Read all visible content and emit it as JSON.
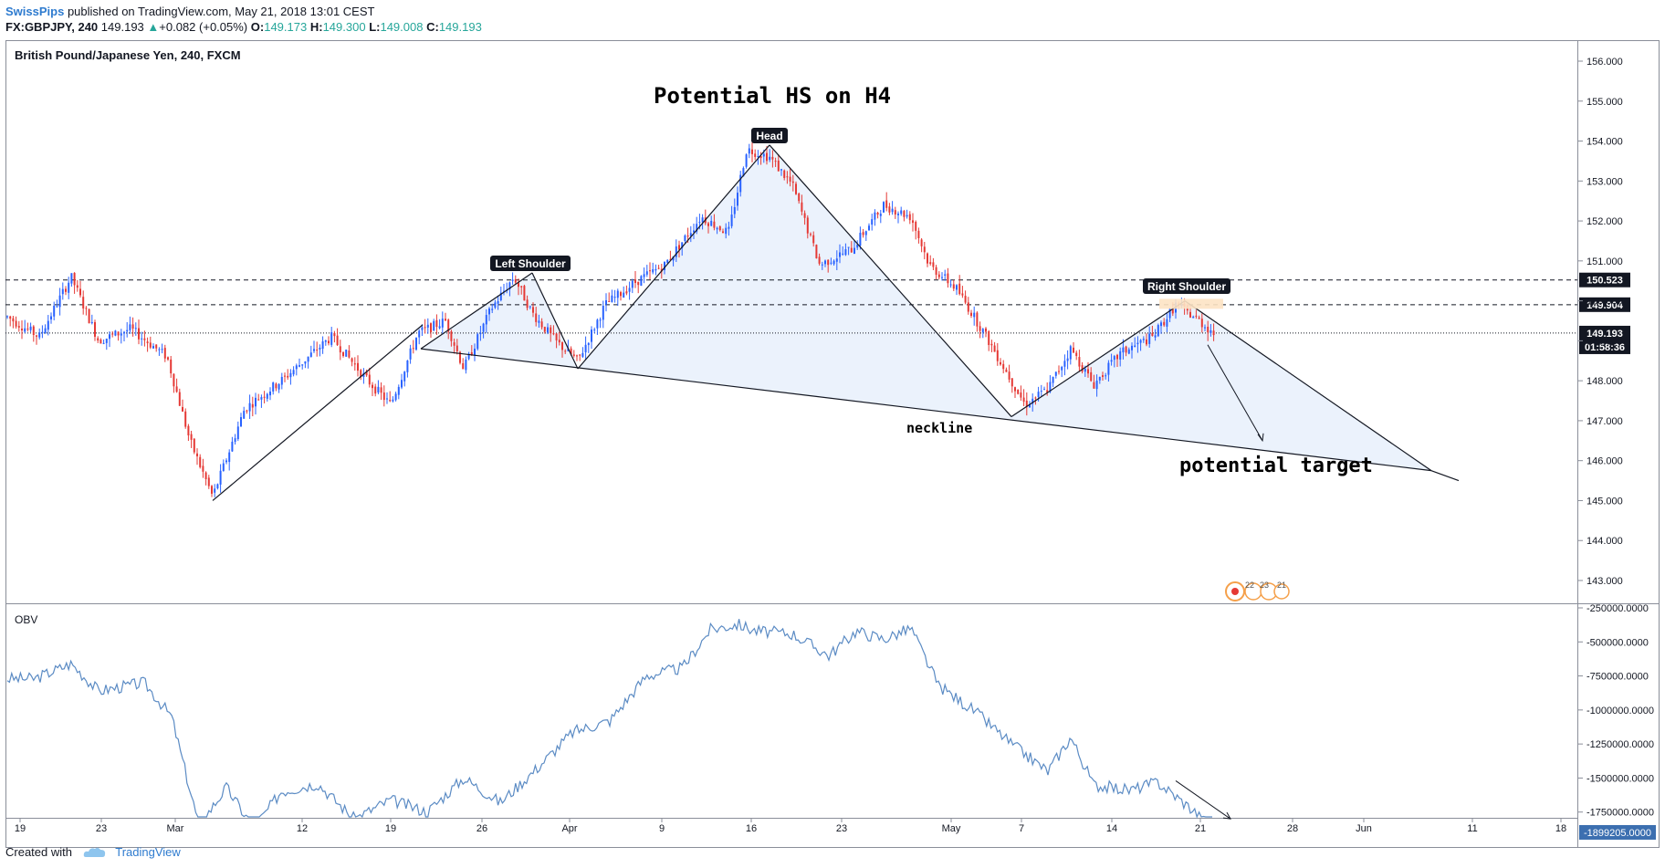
{
  "header": {
    "publisher": "SwissPips",
    "published_text": "published on TradingView.com, May 21, 2018 13:01 CEST",
    "symbol_interval": "FX:GBPJPY, 240",
    "last_price": "149.193",
    "change_arrow": "▲",
    "change": "+0.082 (+0.05%)",
    "o_label": "O:",
    "o_value": "149.173",
    "h_label": "H:",
    "h_value": "149.300",
    "l_label": "L:",
    "l_value": "149.008",
    "c_label": "C:",
    "c_value": "149.193"
  },
  "footer": {
    "created_with": "Created with",
    "brand": "TradingView"
  },
  "colors": {
    "up_candle": "#2962ff",
    "down_candle": "#e53935",
    "obv_line": "#5b8bc4",
    "brand": "#2e7bcf",
    "pattern_fill": "#e8f0fb",
    "shoulder_box": "#fde3c4"
  },
  "chart_data": [
    {
      "type": "candlestick",
      "title": "British Pound/Japanese Yen, 240, FXCM",
      "annotation_title": "Potential HS on H4",
      "y_ticks": [
        "156.000",
        "155.000",
        "154.000",
        "153.000",
        "152.000",
        "151.000",
        "150.000",
        "149.000",
        "148.000",
        "147.000",
        "146.000",
        "145.000",
        "144.000",
        "143.000"
      ],
      "ylim": [
        142.4,
        156.5
      ],
      "x_ticks": [
        "19",
        "23",
        "Mar",
        "12",
        "19",
        "26",
        "Apr",
        "9",
        "16",
        "23",
        "May",
        "7",
        "14",
        "21",
        "28",
        "Jun",
        "11",
        "18"
      ],
      "price_labels": [
        {
          "value": "150.523",
          "price": 150.523,
          "style": "dashed"
        },
        {
          "value": "149.904",
          "price": 149.904,
          "style": "dashed"
        },
        {
          "value": "149.193",
          "price": 149.193,
          "style": "dotted"
        },
        {
          "value": "01:58:36",
          "price": 148.85,
          "style": "countdown"
        }
      ],
      "labels": {
        "left_shoulder": "Left Shoulder",
        "head": "Head",
        "right_shoulder": "Right Shoulder",
        "neckline": "neckline",
        "potential_target": "potential target"
      },
      "events_badge": [
        "22",
        "23",
        "21"
      ],
      "price_path": [
        [
          0,
          149.6
        ],
        [
          35,
          149.1
        ],
        [
          70,
          150.6
        ],
        [
          100,
          149.0
        ],
        [
          135,
          149.3
        ],
        [
          175,
          148.6
        ],
        [
          200,
          146.5
        ],
        [
          225,
          145.1
        ],
        [
          260,
          147.3
        ],
        [
          300,
          148.0
        ],
        [
          355,
          149.1
        ],
        [
          395,
          148.0
        ],
        [
          420,
          147.4
        ],
        [
          450,
          149.2
        ],
        [
          480,
          149.5
        ],
        [
          500,
          148.3
        ],
        [
          530,
          149.8
        ],
        [
          555,
          150.6
        ],
        [
          575,
          149.7
        ],
        [
          600,
          149.0
        ],
        [
          625,
          148.5
        ],
        [
          655,
          149.9
        ],
        [
          690,
          150.5
        ],
        [
          720,
          150.9
        ],
        [
          760,
          152.1
        ],
        [
          790,
          151.7
        ],
        [
          810,
          153.8
        ],
        [
          835,
          153.6
        ],
        [
          860,
          152.9
        ],
        [
          890,
          150.9
        ],
        [
          925,
          151.3
        ],
        [
          960,
          152.4
        ],
        [
          990,
          152.1
        ],
        [
          1010,
          150.9
        ],
        [
          1040,
          150.3
        ],
        [
          1070,
          149.2
        ],
        [
          1095,
          148.2
        ],
        [
          1115,
          147.4
        ],
        [
          1140,
          147.8
        ],
        [
          1165,
          148.8
        ],
        [
          1190,
          147.9
        ],
        [
          1220,
          148.7
        ],
        [
          1255,
          149.1
        ],
        [
          1280,
          149.9
        ],
        [
          1300,
          149.6
        ],
        [
          1322,
          149.19
        ]
      ]
    },
    {
      "type": "line",
      "title": "OBV",
      "y_ticks": [
        "-250000.0000",
        "-500000.0000",
        "-750000.0000",
        "-1000000.0000",
        "-1250000.0000",
        "-1500000.0000",
        "-1750000.0000",
        "-2000000.0000"
      ],
      "ylim": [
        -2030000,
        -230000
      ],
      "last_value": "-1899205.0000",
      "last_value_num": -1899205,
      "obv_path": [
        [
          0,
          -770000
        ],
        [
          30,
          -770000
        ],
        [
          70,
          -660000
        ],
        [
          100,
          -860000
        ],
        [
          150,
          -800000
        ],
        [
          180,
          -1050000
        ],
        [
          210,
          -1850000
        ],
        [
          240,
          -1570000
        ],
        [
          270,
          -1870000
        ],
        [
          300,
          -1600000
        ],
        [
          340,
          -1540000
        ],
        [
          380,
          -1800000
        ],
        [
          420,
          -1660000
        ],
        [
          460,
          -1750000
        ],
        [
          500,
          -1500000
        ],
        [
          540,
          -1680000
        ],
        [
          580,
          -1430000
        ],
        [
          620,
          -1160000
        ],
        [
          660,
          -1080000
        ],
        [
          700,
          -750000
        ],
        [
          740,
          -690000
        ],
        [
          770,
          -410000
        ],
        [
          800,
          -370000
        ],
        [
          820,
          -420000
        ],
        [
          860,
          -440000
        ],
        [
          900,
          -600000
        ],
        [
          930,
          -420000
        ],
        [
          960,
          -480000
        ],
        [
          990,
          -400000
        ],
        [
          1020,
          -820000
        ],
        [
          1060,
          -1010000
        ],
        [
          1100,
          -1250000
        ],
        [
          1140,
          -1450000
        ],
        [
          1165,
          -1200000
        ],
        [
          1190,
          -1550000
        ],
        [
          1230,
          -1590000
        ],
        [
          1260,
          -1530000
        ],
        [
          1300,
          -1740000
        ],
        [
          1322,
          -1899205
        ]
      ]
    }
  ]
}
